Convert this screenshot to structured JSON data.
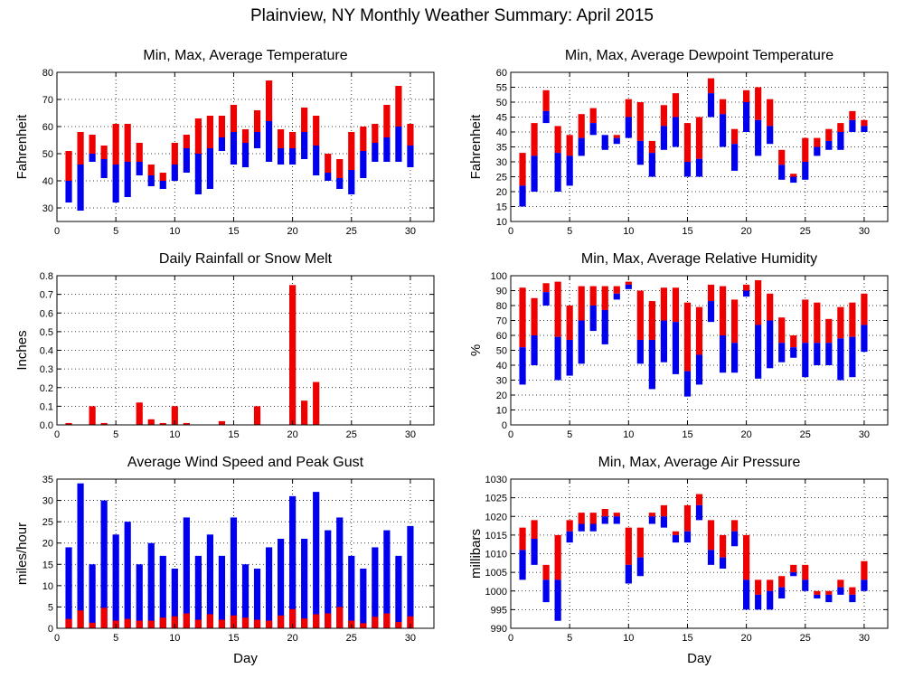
{
  "figure_title": "Plainview, NY Monthly Weather Summary: April 2015",
  "colors": {
    "red": "#ee0000",
    "blue": "#0000ee",
    "grid": "#000000"
  },
  "chart_data": [
    {
      "id": "temp",
      "type": "bar",
      "style": "floating-range",
      "title": "Min, Max, Average Temperature",
      "xlabel": "",
      "ylabel": "Fahrenheit",
      "xlim": [
        0,
        32
      ],
      "ylim": [
        25,
        80
      ],
      "xticks": [
        0,
        5,
        10,
        15,
        20,
        25,
        30
      ],
      "yticks": [
        30,
        40,
        50,
        60,
        70,
        80
      ],
      "x": [
        1,
        2,
        3,
        4,
        5,
        6,
        7,
        8,
        9,
        10,
        11,
        12,
        13,
        14,
        15,
        16,
        17,
        18,
        19,
        20,
        21,
        22,
        23,
        24,
        25,
        26,
        27,
        28,
        29,
        30
      ],
      "min": [
        32,
        29,
        47,
        41,
        32,
        34,
        42,
        38,
        37,
        40,
        43,
        35,
        37,
        51,
        46,
        45,
        52,
        47,
        46,
        46,
        48,
        42,
        40,
        37,
        35,
        41,
        47,
        47,
        47,
        45
      ],
      "avg": [
        40,
        46,
        50,
        48,
        46,
        47,
        47,
        42,
        40,
        46,
        52,
        50,
        52,
        56,
        58,
        54,
        58,
        62,
        52,
        52,
        58,
        53,
        43,
        41,
        44,
        51,
        54,
        56,
        60,
        53
      ],
      "max": [
        51,
        58,
        57,
        53,
        61,
        61,
        54,
        46,
        43,
        54,
        57,
        63,
        64,
        64,
        68,
        59,
        66,
        77,
        59,
        58,
        67,
        64,
        50,
        48,
        58,
        60,
        61,
        68,
        75,
        61
      ]
    },
    {
      "id": "dew",
      "type": "bar",
      "style": "floating-range",
      "title": "Min, Max, Average Dewpoint Temperature",
      "xlabel": "",
      "ylabel": "Fahrenheit",
      "xlim": [
        0,
        32
      ],
      "ylim": [
        10,
        60
      ],
      "xticks": [
        0,
        5,
        10,
        15,
        20,
        25,
        30
      ],
      "yticks": [
        10,
        15,
        20,
        25,
        30,
        35,
        40,
        45,
        50,
        55,
        60
      ],
      "x": [
        1,
        2,
        3,
        4,
        5,
        6,
        7,
        8,
        9,
        10,
        11,
        12,
        13,
        14,
        15,
        16,
        17,
        18,
        19,
        20,
        21,
        22,
        23,
        24,
        25,
        26,
        27,
        28,
        29,
        30
      ],
      "min": [
        15,
        20,
        43,
        20,
        22,
        32,
        39,
        34,
        36,
        38,
        29,
        25,
        34,
        35,
        25,
        25,
        45,
        35,
        27,
        40,
        32,
        36,
        24,
        23,
        24,
        32,
        34,
        34,
        40,
        40
      ],
      "avg": [
        22,
        32,
        47,
        33,
        32,
        38,
        43,
        39,
        38,
        45,
        37,
        33,
        42,
        45,
        30,
        31,
        53,
        46,
        36,
        50,
        44,
        42,
        29,
        25,
        30,
        35,
        37,
        40,
        44,
        42
      ],
      "max": [
        33,
        43,
        54,
        42,
        39,
        46,
        48,
        39,
        39,
        51,
        50,
        37,
        49,
        53,
        43,
        45,
        58,
        51,
        41,
        54,
        55,
        51,
        34,
        26,
        38,
        38,
        41,
        43,
        47,
        44
      ]
    },
    {
      "id": "rain",
      "type": "bar",
      "title": "Daily Rainfall or Snow Melt",
      "xlabel": "",
      "ylabel": "Inches",
      "xlim": [
        0,
        32
      ],
      "ylim": [
        0,
        0.8
      ],
      "xticks": [
        0,
        5,
        10,
        15,
        20,
        25,
        30
      ],
      "yticks": [
        0,
        0.1,
        0.2,
        0.3,
        0.4,
        0.5,
        0.6,
        0.7,
        0.8
      ],
      "ytick_labels": [
        "0.0",
        "0.1",
        "0.2",
        "0.3",
        "0.4",
        "0.5",
        "0.6",
        "0.7",
        "0.8"
      ],
      "x": [
        1,
        2,
        3,
        4,
        5,
        6,
        7,
        8,
        9,
        10,
        11,
        12,
        13,
        14,
        15,
        16,
        17,
        18,
        19,
        20,
        21,
        22,
        23,
        24,
        25,
        26,
        27,
        28,
        29,
        30
      ],
      "values": [
        0.01,
        0,
        0.1,
        0.01,
        0,
        0,
        0.12,
        0.03,
        0.01,
        0.1,
        0.01,
        0,
        0,
        0.02,
        0,
        0,
        0.1,
        0,
        0,
        0.75,
        0.13,
        0.23,
        0,
        0,
        0,
        0,
        0,
        0,
        0,
        0
      ]
    },
    {
      "id": "hum",
      "type": "bar",
      "style": "floating-range",
      "title": "Min, Max, Average Relative Humidity",
      "xlabel": "",
      "ylabel": "%",
      "xlim": [
        0,
        32
      ],
      "ylim": [
        0,
        100
      ],
      "xticks": [
        0,
        5,
        10,
        15,
        20,
        25,
        30
      ],
      "yticks": [
        0,
        10,
        20,
        30,
        40,
        50,
        60,
        70,
        80,
        90,
        100
      ],
      "x": [
        1,
        2,
        3,
        4,
        5,
        6,
        7,
        8,
        9,
        10,
        11,
        12,
        13,
        14,
        15,
        16,
        17,
        18,
        19,
        20,
        21,
        22,
        23,
        24,
        25,
        26,
        27,
        28,
        29,
        30
      ],
      "min": [
        27,
        40,
        80,
        30,
        33,
        41,
        63,
        54,
        84,
        91,
        41,
        24,
        42,
        34,
        19,
        27,
        69,
        35,
        35,
        86,
        31,
        38,
        42,
        45,
        32,
        40,
        40,
        30,
        32,
        49
      ],
      "avg": [
        52,
        60,
        89,
        59,
        57,
        70,
        80,
        77,
        88,
        94,
        57,
        57,
        70,
        69,
        36,
        47,
        83,
        60,
        55,
        90,
        67,
        70,
        55,
        52,
        55,
        55,
        55,
        58,
        59,
        67
      ],
      "max": [
        92,
        85,
        95,
        96,
        80,
        93,
        93,
        93,
        93,
        96,
        90,
        83,
        92,
        92,
        82,
        79,
        94,
        93,
        84,
        94,
        97,
        88,
        72,
        60,
        84,
        82,
        71,
        79,
        82,
        88
      ]
    },
    {
      "id": "wind",
      "type": "bar",
      "style": "overlay",
      "title": "Average Wind Speed and Peak Gust",
      "xlabel": "Day",
      "ylabel": "miles/hour",
      "xlim": [
        0,
        32
      ],
      "ylim": [
        0,
        35
      ],
      "xticks": [
        0,
        5,
        10,
        15,
        20,
        25,
        30
      ],
      "yticks": [
        0,
        5,
        10,
        15,
        20,
        25,
        30,
        35
      ],
      "x": [
        1,
        2,
        3,
        4,
        5,
        6,
        7,
        8,
        9,
        10,
        11,
        12,
        13,
        14,
        15,
        16,
        17,
        18,
        19,
        20,
        21,
        22,
        23,
        24,
        25,
        26,
        27,
        28,
        29,
        30
      ],
      "gust": [
        19,
        34,
        15,
        30,
        22,
        25,
        15,
        20,
        17,
        14,
        26,
        17,
        22,
        17,
        26,
        15,
        14,
        19,
        21,
        31,
        21,
        32,
        23,
        26,
        17,
        14,
        19,
        23,
        17,
        24
      ],
      "avg": [
        2.2,
        4.2,
        1.3,
        4.8,
        1.8,
        2.2,
        1.8,
        1.8,
        2.5,
        2.8,
        3.5,
        2.0,
        3.3,
        2.0,
        3.0,
        2.5,
        2.0,
        1.8,
        3.0,
        4.5,
        2.3,
        3.3,
        3.5,
        5.0,
        1.8,
        1.2,
        2.7,
        3.5,
        1.5,
        2.8
      ]
    },
    {
      "id": "pres",
      "type": "bar",
      "style": "floating-range",
      "title": "Min, Max, Average Air Pressure",
      "xlabel": "Day",
      "ylabel": "millibars",
      "xlim": [
        0,
        32
      ],
      "ylim": [
        990,
        1030
      ],
      "xticks": [
        0,
        5,
        10,
        15,
        20,
        25,
        30
      ],
      "yticks": [
        990,
        995,
        1000,
        1005,
        1010,
        1015,
        1020,
        1025,
        1030
      ],
      "x": [
        1,
        2,
        3,
        4,
        5,
        6,
        7,
        8,
        9,
        10,
        11,
        12,
        13,
        14,
        15,
        16,
        17,
        18,
        19,
        20,
        21,
        22,
        23,
        24,
        25,
        26,
        27,
        28,
        29,
        30
      ],
      "min": [
        1003,
        1007,
        997,
        992,
        1013,
        1016,
        1016,
        1018,
        1018,
        1002,
        1004,
        1018,
        1017,
        1013,
        1013,
        1019,
        1007,
        1006,
        1012,
        995,
        995,
        995,
        998,
        1004,
        1000,
        998,
        997,
        999,
        997,
        1000
      ],
      "avg": [
        1011,
        1014,
        1003,
        1003,
        1016,
        1018,
        1018,
        1020,
        1020,
        1007,
        1009,
        1020,
        1020,
        1015,
        1016,
        1023,
        1011,
        1009,
        1016,
        1003,
        999,
        1000,
        1001,
        1005,
        1003,
        999,
        999,
        1001,
        999,
        1003
      ],
      "max": [
        1017,
        1019,
        1007,
        1015,
        1019,
        1021,
        1021,
        1022,
        1021,
        1017,
        1017,
        1021,
        1023,
        1016,
        1023,
        1026,
        1019,
        1015,
        1019,
        1015,
        1003,
        1003,
        1004,
        1007,
        1007,
        1000,
        1000,
        1003,
        1001,
        1008
      ]
    }
  ]
}
